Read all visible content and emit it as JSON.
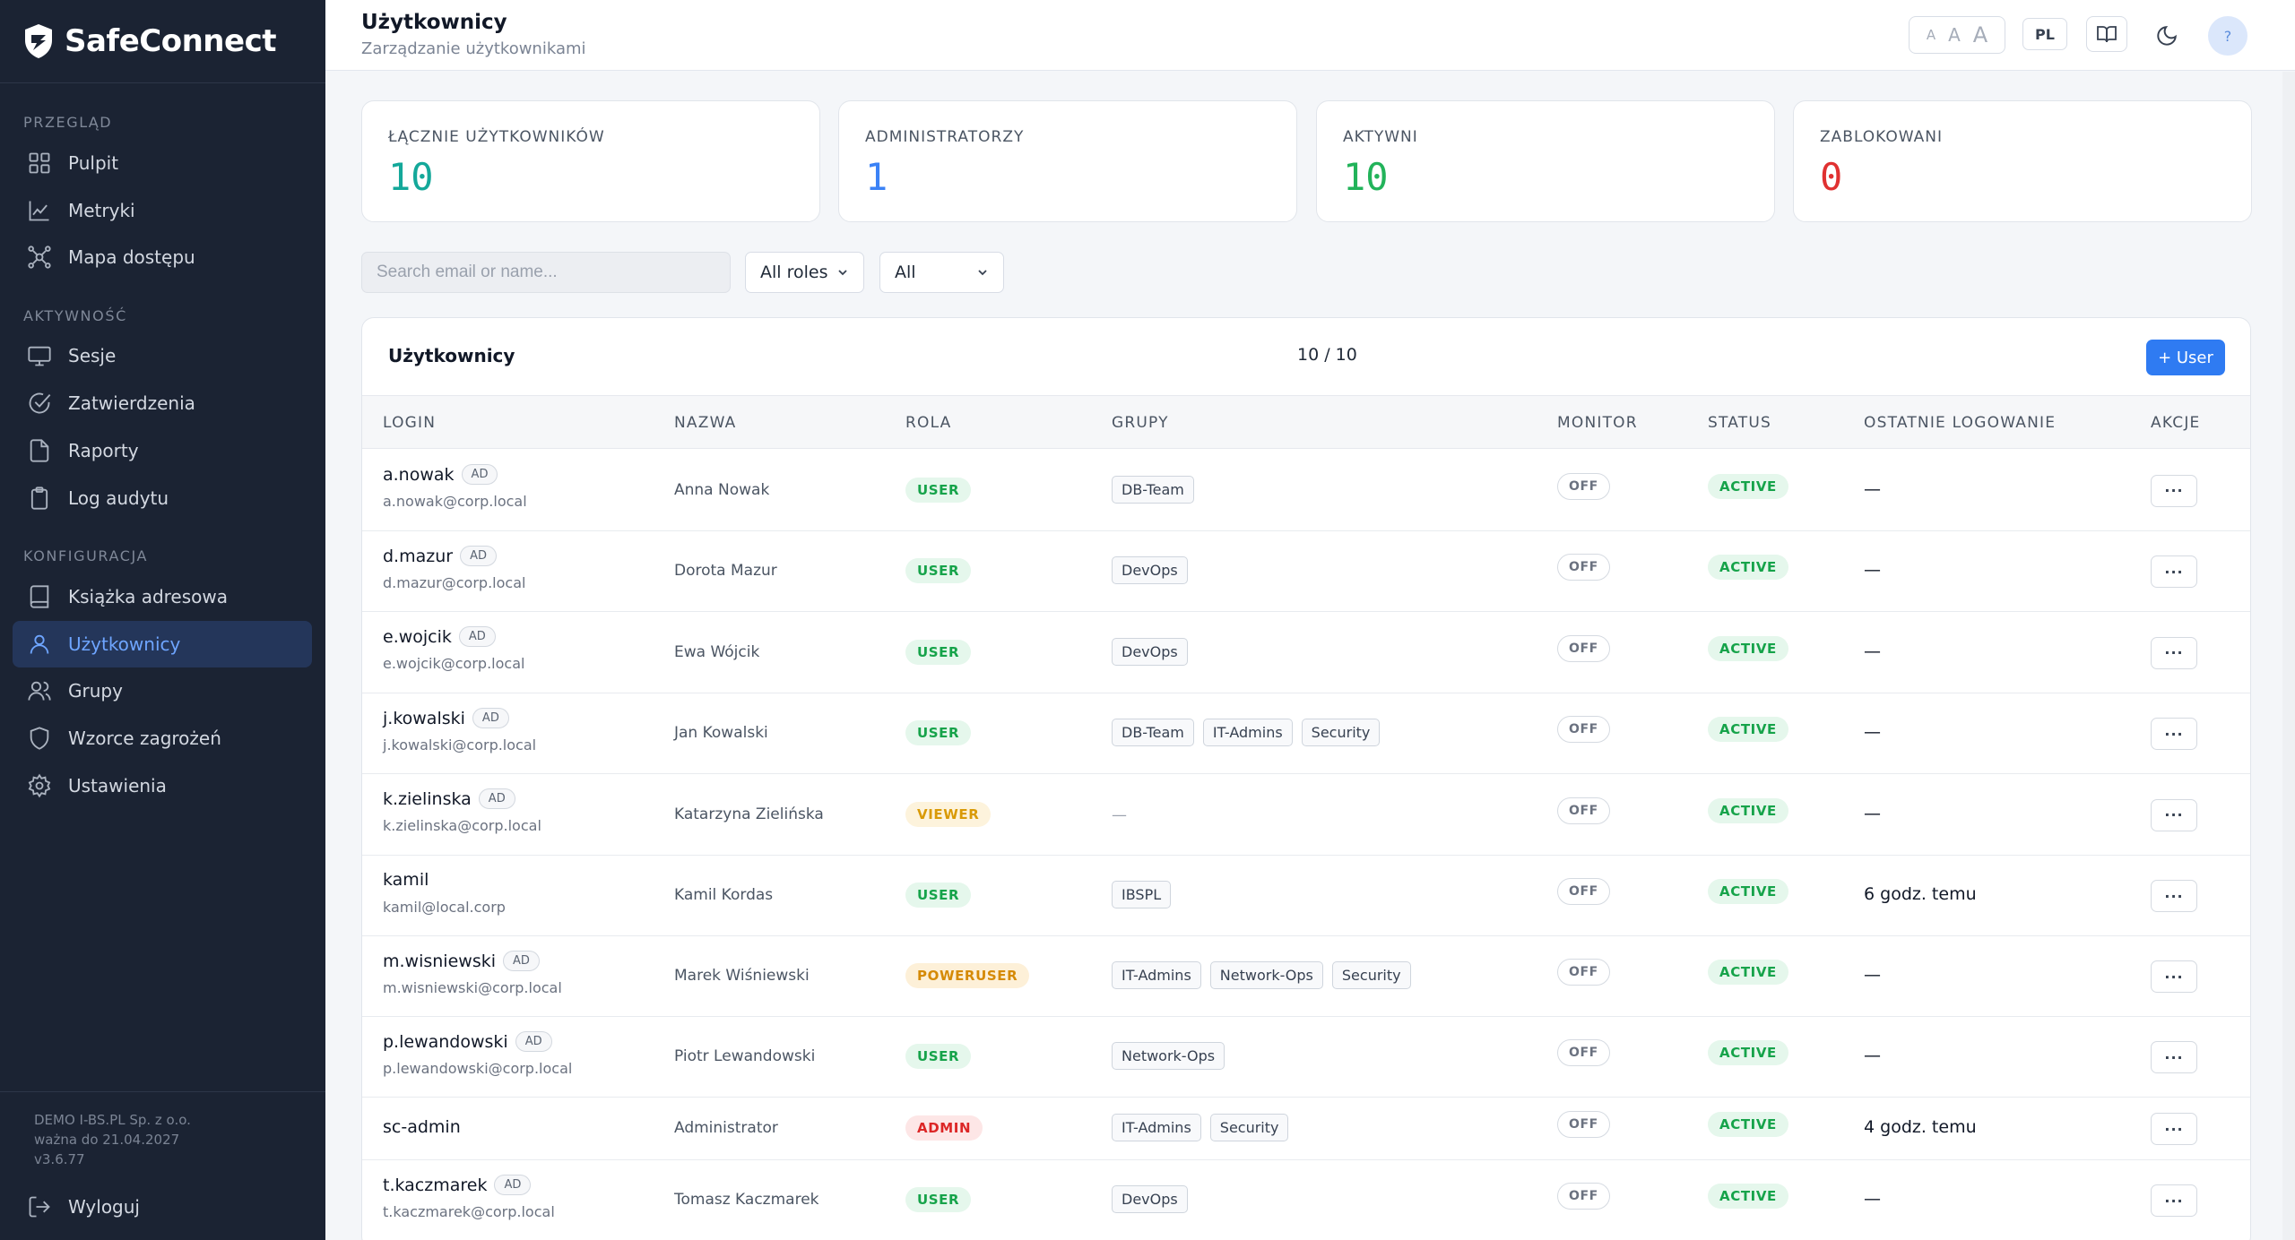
{
  "app": {
    "name": "SafeConnect"
  },
  "sidebar": {
    "sections": [
      {
        "title": "PRZEGLĄD",
        "items": [
          {
            "label": "Pulpit",
            "icon": "dashboard-icon"
          },
          {
            "label": "Metryki",
            "icon": "chart-line-icon"
          },
          {
            "label": "Mapa dostępu",
            "icon": "network-map-icon"
          }
        ]
      },
      {
        "title": "AKTYWNOŚĆ",
        "items": [
          {
            "label": "Sesje",
            "icon": "monitor-icon"
          },
          {
            "label": "Zatwierdzenia",
            "icon": "check-circle-icon"
          },
          {
            "label": "Raporty",
            "icon": "file-icon"
          },
          {
            "label": "Log audytu",
            "icon": "clipboard-icon"
          }
        ]
      },
      {
        "title": "KONFIGURACJA",
        "items": [
          {
            "label": "Książka adresowa",
            "icon": "book-icon"
          },
          {
            "label": "Użytkownicy",
            "icon": "user-icon",
            "active": true
          },
          {
            "label": "Grupy",
            "icon": "users-icon"
          },
          {
            "label": "Wzorce zagrożeń",
            "icon": "shield-icon"
          },
          {
            "label": "Ustawienia",
            "icon": "gear-icon"
          }
        ]
      }
    ],
    "footer": {
      "company": "DEMO I-BS.PL Sp. z o.o.",
      "valid": "ważna do 21.04.2027",
      "version": "v3.6.77"
    },
    "logout_label": "Wyloguj"
  },
  "header": {
    "title": "Użytkownicy",
    "subtitle": "Zarządzanie użytkownikami",
    "font_sizes": [
      "A",
      "A",
      "A"
    ],
    "lang": "PL",
    "help": "?"
  },
  "stats": [
    {
      "label": "ŁĄCZNIE UŻYTKOWNIKÓW",
      "value": "10",
      "color": "#14a89a"
    },
    {
      "label": "ADMINISTRATORZY",
      "value": "1",
      "color": "#3b82f6"
    },
    {
      "label": "AKTYWNI",
      "value": "10",
      "color": "#22b35a"
    },
    {
      "label": "ZABLOKOWANI",
      "value": "0",
      "color": "#e03131"
    }
  ],
  "filters": {
    "search_placeholder": "Search email or name...",
    "role": "All roles",
    "status": "All"
  },
  "table": {
    "title": "Użytkownicy",
    "count": "10 / 10",
    "add_label": "+ User",
    "columns": [
      "LOGIN",
      "NAZWA",
      "ROLA",
      "GRUPY",
      "MONITOR",
      "STATUS",
      "OSTATNIE LOGOWANIE",
      "AKCJE"
    ],
    "rows": [
      {
        "login": "a.nowak",
        "ad": "AD",
        "email": "a.nowak@corp.local",
        "name": "Anna Nowak",
        "role": "USER",
        "groups": [
          "DB-Team"
        ],
        "monitor": "OFF",
        "status": "ACTIVE",
        "last": "—",
        "actions": "···"
      },
      {
        "login": "d.mazur",
        "ad": "AD",
        "email": "d.mazur@corp.local",
        "name": "Dorota Mazur",
        "role": "USER",
        "groups": [
          "DevOps"
        ],
        "monitor": "OFF",
        "status": "ACTIVE",
        "last": "—",
        "actions": "···"
      },
      {
        "login": "e.wojcik",
        "ad": "AD",
        "email": "e.wojcik@corp.local",
        "name": "Ewa Wójcik",
        "role": "USER",
        "groups": [
          "DevOps"
        ],
        "monitor": "OFF",
        "status": "ACTIVE",
        "last": "—",
        "actions": "···"
      },
      {
        "login": "j.kowalski",
        "ad": "AD",
        "email": "j.kowalski@corp.local",
        "name": "Jan Kowalski",
        "role": "USER",
        "groups": [
          "DB-Team",
          "IT-Admins",
          "Security"
        ],
        "monitor": "OFF",
        "status": "ACTIVE",
        "last": "—",
        "actions": "···"
      },
      {
        "login": "k.zielinska",
        "ad": "AD",
        "email": "k.zielinska@corp.local",
        "name": "Katarzyna Zielińska",
        "role": "VIEWER",
        "groups": [],
        "no_groups": "—",
        "monitor": "OFF",
        "status": "ACTIVE",
        "last": "—",
        "actions": "···"
      },
      {
        "login": "kamil",
        "ad": "",
        "email": "kamil@local.corp",
        "name": "Kamil Kordas",
        "role": "USER",
        "groups": [
          "IBSPL"
        ],
        "monitor": "OFF",
        "status": "ACTIVE",
        "last": "6 godz. temu",
        "actions": "···"
      },
      {
        "login": "m.wisniewski",
        "ad": "AD",
        "email": "m.wisniewski@corp.local",
        "name": "Marek Wiśniewski",
        "role": "POWERUSER",
        "groups": [
          "IT-Admins",
          "Network-Ops",
          "Security"
        ],
        "monitor": "OFF",
        "status": "ACTIVE",
        "last": "—",
        "actions": "···"
      },
      {
        "login": "p.lewandowski",
        "ad": "AD",
        "email": "p.lewandowski@corp.local",
        "name": "Piotr Lewandowski",
        "role": "USER",
        "groups": [
          "Network-Ops"
        ],
        "monitor": "OFF",
        "status": "ACTIVE",
        "last": "—",
        "actions": "···"
      },
      {
        "login": "sc-admin",
        "ad": "",
        "email": "",
        "name": "Administrator",
        "role": "ADMIN",
        "groups": [
          "IT-Admins",
          "Security"
        ],
        "monitor": "OFF",
        "status": "ACTIVE",
        "last": "4 godz. temu",
        "actions": "···"
      },
      {
        "login": "t.kaczmarek",
        "ad": "AD",
        "email": "t.kaczmarek@corp.local",
        "name": "Tomasz Kaczmarek",
        "role": "USER",
        "groups": [
          "DevOps"
        ],
        "monitor": "OFF",
        "status": "ACTIVE",
        "last": "—",
        "actions": "···"
      }
    ]
  }
}
